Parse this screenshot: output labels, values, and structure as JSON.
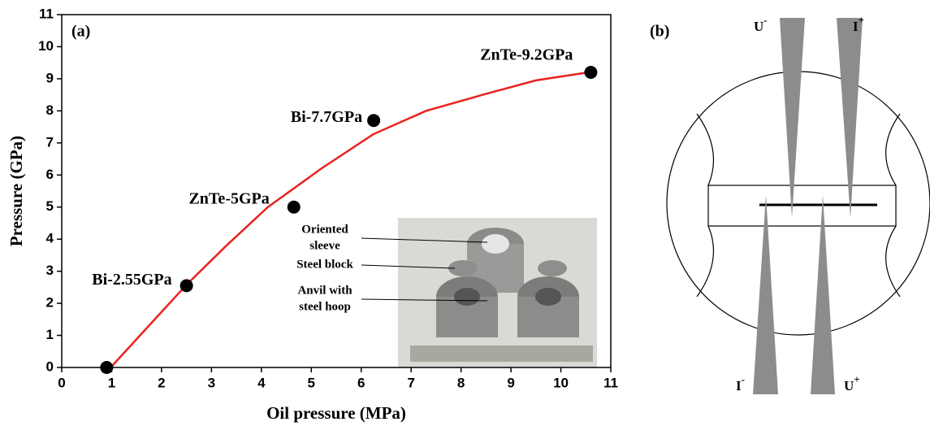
{
  "chart_data": {
    "type": "scatter",
    "panel_label": "(a)",
    "x_label": "Oil pressure (MPa)",
    "y_label": "Pressure (GPa)",
    "xlim": [
      0,
      11
    ],
    "ylim": [
      0,
      11
    ],
    "xticks": [
      0,
      1,
      2,
      3,
      4,
      5,
      6,
      7,
      8,
      9,
      10,
      11
    ],
    "yticks": [
      0,
      1,
      2,
      3,
      4,
      5,
      6,
      7,
      8,
      9,
      10,
      11
    ],
    "series": [
      {
        "color": "#000000",
        "x": [
          0.9,
          2.5,
          4.65,
          6.25,
          10.6
        ],
        "values": [
          0,
          2.55,
          5.0,
          7.7,
          9.2
        ],
        "value_labels": [
          null,
          "Bi-2.55GPa",
          "ZnTe-5GPa",
          "Bi-7.7GPa",
          "ZnTe-9.2GPa"
        ]
      }
    ],
    "fit": {
      "color": "#e8231e",
      "x": [
        0.95,
        2.5,
        3.3,
        4.13,
        5.2,
        6.24,
        7.3,
        8.5,
        9.5,
        10.63
      ],
      "values": [
        -0.05,
        2.58,
        3.8,
        5.0,
        6.2,
        7.27,
        8.0,
        8.53,
        8.95,
        9.22
      ]
    },
    "inset_labels": [
      [
        "Oriented",
        "sleeve"
      ],
      [
        "Steel block"
      ],
      [
        "Anvil with",
        "steel hoop"
      ]
    ]
  },
  "diagram": {
    "panel_label": "(b)",
    "probes": [
      {
        "base": "U",
        "sup": "-"
      },
      {
        "base": "I",
        "sup": "+"
      },
      {
        "base": "I",
        "sup": "-"
      },
      {
        "base": "U",
        "sup": "+"
      }
    ]
  }
}
